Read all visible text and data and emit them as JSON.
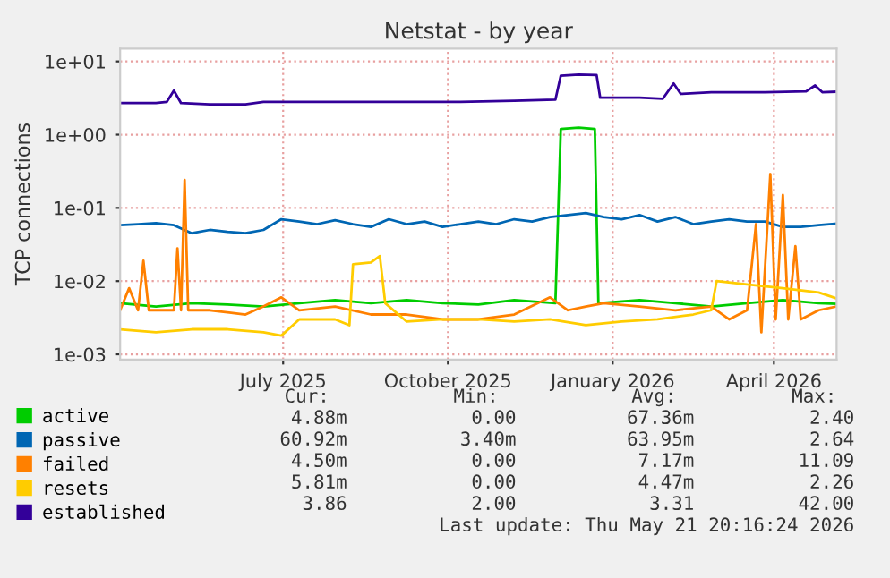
{
  "chart_data": {
    "type": "line",
    "title": "Netstat - by year",
    "ylabel": "TCP connections",
    "log": "y",
    "grid": true,
    "legend": "bottom",
    "marker": "none",
    "line_style": "solid",
    "xlim": [
      "2025-04-16",
      "2026-05-21"
    ],
    "xticks": [
      {
        "value": "2025-07-16",
        "label": "July 2025"
      },
      {
        "value": "2025-10-16",
        "label": "October 2025"
      },
      {
        "value": "2026-01-16",
        "label": "January 2026"
      },
      {
        "value": "2026-04-16",
        "label": "April 2026"
      }
    ],
    "ylim": [
      0.00085,
      15
    ],
    "yticks": [
      {
        "value": 0.001,
        "label": "1e-03"
      },
      {
        "value": 0.01,
        "label": "1e-02"
      },
      {
        "value": 0.1,
        "label": "1e-01"
      },
      {
        "value": 1,
        "label": "1e+00"
      },
      {
        "value": 10,
        "label": "1e+01"
      }
    ],
    "series": [
      {
        "name": "active",
        "color": "#00cc00",
        "x": [
          "2025-04-16",
          "2025-05-06",
          "2025-05-26",
          "2025-06-15",
          "2025-07-05",
          "2025-07-25",
          "2025-08-14",
          "2025-09-03",
          "2025-09-23",
          "2025-10-13",
          "2025-11-02",
          "2025-11-22",
          "2025-12-15",
          "2025-12-18",
          "2025-12-28",
          "2026-01-06",
          "2026-01-08",
          "2026-01-31",
          "2026-02-20",
          "2026-03-12",
          "2026-04-01",
          "2026-04-21",
          "2026-05-11",
          "2026-05-21"
        ],
        "values": [
          0.005,
          0.0045,
          0.005,
          0.0048,
          0.0045,
          0.005,
          0.0055,
          0.005,
          0.0055,
          0.005,
          0.0048,
          0.0055,
          0.005,
          1.2,
          1.25,
          1.2,
          0.005,
          0.0055,
          0.005,
          0.0045,
          0.005,
          0.0055,
          0.005,
          0.00488
        ]
      },
      {
        "name": "passive",
        "color": "#0066b3",
        "x": [
          "2025-04-16",
          "2025-04-26",
          "2025-05-06",
          "2025-05-16",
          "2025-05-26",
          "2025-06-05",
          "2025-06-15",
          "2025-06-25",
          "2025-07-05",
          "2025-07-15",
          "2025-07-25",
          "2025-08-04",
          "2025-08-14",
          "2025-08-24",
          "2025-09-03",
          "2025-09-13",
          "2025-09-23",
          "2025-10-03",
          "2025-10-13",
          "2025-10-23",
          "2025-11-02",
          "2025-11-12",
          "2025-11-22",
          "2025-12-02",
          "2025-12-12",
          "2025-12-22",
          "2026-01-01",
          "2026-01-11",
          "2026-01-21",
          "2026-01-31",
          "2026-02-10",
          "2026-02-20",
          "2026-03-02",
          "2026-03-12",
          "2026-03-22",
          "2026-04-01",
          "2026-04-11",
          "2026-04-21",
          "2026-05-01",
          "2026-05-11",
          "2026-05-21"
        ],
        "values": [
          0.058,
          0.06,
          0.062,
          0.058,
          0.045,
          0.05,
          0.047,
          0.045,
          0.05,
          0.07,
          0.065,
          0.06,
          0.068,
          0.06,
          0.055,
          0.07,
          0.06,
          0.065,
          0.055,
          0.06,
          0.065,
          0.06,
          0.07,
          0.065,
          0.075,
          0.08,
          0.085,
          0.075,
          0.07,
          0.08,
          0.065,
          0.075,
          0.06,
          0.065,
          0.07,
          0.065,
          0.065,
          0.055,
          0.055,
          0.058,
          0.0609
        ]
      },
      {
        "name": "failed",
        "color": "#ff8000",
        "x": [
          "2025-04-16",
          "2025-04-21",
          "2025-04-26",
          "2025-04-29",
          "2025-05-02",
          "2025-05-16",
          "2025-05-18",
          "2025-05-20",
          "2025-05-22",
          "2025-05-24",
          "2025-06-05",
          "2025-06-25",
          "2025-07-05",
          "2025-07-15",
          "2025-07-25",
          "2025-08-14",
          "2025-09-03",
          "2025-09-23",
          "2025-10-13",
          "2025-11-02",
          "2025-11-22",
          "2025-12-12",
          "2025-12-22",
          "2026-01-01",
          "2026-01-11",
          "2026-01-31",
          "2026-02-20",
          "2026-03-12",
          "2026-03-22",
          "2026-04-01",
          "2026-04-06",
          "2026-04-09",
          "2026-04-14",
          "2026-04-17",
          "2026-04-21",
          "2026-04-24",
          "2026-04-28",
          "2026-05-01",
          "2026-05-11",
          "2026-05-21"
        ],
        "values": [
          0.004,
          0.008,
          0.004,
          0.019,
          0.004,
          0.004,
          0.028,
          0.004,
          0.24,
          0.004,
          0.004,
          0.0035,
          0.0045,
          0.006,
          0.004,
          0.0045,
          0.0035,
          0.0035,
          0.003,
          0.003,
          0.0035,
          0.006,
          0.004,
          0.0045,
          0.005,
          0.0045,
          0.004,
          0.0045,
          0.003,
          0.004,
          0.06,
          0.002,
          0.29,
          0.003,
          0.15,
          0.003,
          0.03,
          0.003,
          0.004,
          0.0045
        ]
      },
      {
        "name": "resets",
        "color": "#ffcc00",
        "x": [
          "2025-04-16",
          "2025-05-06",
          "2025-05-26",
          "2025-06-15",
          "2025-07-05",
          "2025-07-15",
          "2025-07-25",
          "2025-08-14",
          "2025-08-22",
          "2025-08-24",
          "2025-09-03",
          "2025-09-08",
          "2025-09-11",
          "2025-09-23",
          "2025-10-13",
          "2025-11-02",
          "2025-11-22",
          "2025-12-12",
          "2026-01-01",
          "2026-01-21",
          "2026-02-10",
          "2026-03-02",
          "2026-03-12",
          "2026-03-15",
          "2026-04-01",
          "2026-04-21",
          "2026-05-11",
          "2026-05-21"
        ],
        "values": [
          0.0022,
          0.002,
          0.0022,
          0.0022,
          0.002,
          0.0018,
          0.003,
          0.003,
          0.0025,
          0.017,
          0.018,
          0.022,
          0.005,
          0.0028,
          0.003,
          0.003,
          0.0028,
          0.003,
          0.0025,
          0.0028,
          0.003,
          0.0035,
          0.004,
          0.01,
          0.009,
          0.008,
          0.007,
          0.00581
        ]
      },
      {
        "name": "established",
        "color": "#330099",
        "x": [
          "2025-04-16",
          "2025-04-26",
          "2025-05-06",
          "2025-05-12",
          "2025-05-16",
          "2025-05-20",
          "2025-06-05",
          "2025-06-25",
          "2025-07-05",
          "2025-07-25",
          "2025-08-24",
          "2025-09-23",
          "2025-10-23",
          "2025-11-22",
          "2025-12-15",
          "2025-12-18",
          "2025-12-28",
          "2026-01-07",
          "2026-01-09",
          "2026-01-31",
          "2026-02-13",
          "2026-02-19",
          "2026-02-23",
          "2026-03-12",
          "2026-04-11",
          "2026-05-04",
          "2026-05-09",
          "2026-05-13",
          "2026-05-21"
        ],
        "values": [
          2.7,
          2.7,
          2.7,
          2.8,
          4.0,
          2.7,
          2.6,
          2.6,
          2.8,
          2.8,
          2.8,
          2.8,
          2.8,
          2.9,
          3.0,
          6.4,
          6.6,
          6.5,
          3.2,
          3.2,
          3.1,
          5.0,
          3.6,
          3.8,
          3.8,
          3.9,
          4.7,
          3.8,
          3.86
        ]
      }
    ],
    "annotations": [
      "Cur:",
      "Min:",
      "Avg:",
      "Max:",
      "4.88m",
      "0.00",
      "67.36m",
      "2.40",
      "60.92m",
      "3.40m",
      "63.95m",
      "2.64",
      "4.50m",
      "0.00",
      "7.17m",
      "11.09",
      "5.81m",
      "0.00",
      "4.47m",
      "2.26",
      "3.86",
      "2.00",
      "3.31",
      "42.00",
      "Last update: Thu May 21 20:16:24 2026"
    ]
  }
}
